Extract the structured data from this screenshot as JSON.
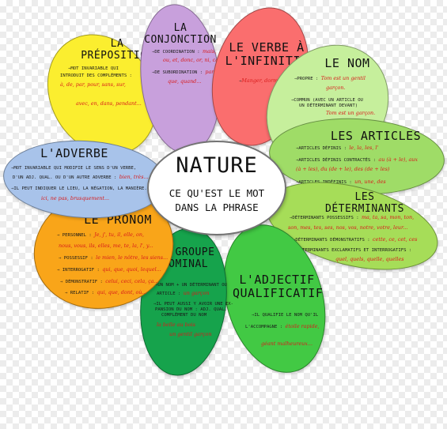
{
  "center": {
    "title": "NATURE",
    "subtitle_line1": "CE QU'EST LE MOT",
    "subtitle_line2": "DANS LA PHRASE"
  },
  "colors": {
    "preposition": "#fbee2f",
    "conjonction": "#c8a0dc",
    "verbe": "#fa6e6e",
    "nom": "#c6ef9c",
    "articles": "#9fdc67",
    "determinants": "#a6dd58",
    "adjectif": "#42c944",
    "groupe_nominal": "#16a34c",
    "pronom": "#f9a519",
    "adverbe": "#a8c3ea",
    "example_text": "#d81b1b"
  },
  "petals": {
    "preposition": {
      "title1": "LA",
      "title2": "PRÉPOSITION",
      "lines": [
        {
          "text": "⇒MOT INVARIABLE QUI",
          "ex": ""
        },
        {
          "text": "INTRODUIT DES COMPLÉMENTS :",
          "ex": ""
        },
        {
          "text": "",
          "ex": "à, de, par, pour, sans, sur,"
        },
        {
          "text": "",
          "ex": "avec, en, dans, pendant..."
        }
      ]
    },
    "conjonction": {
      "title1": "LA",
      "title2": "CONJONCTION",
      "lines": [
        {
          "text": "⇒DE COORDINATION :",
          "ex": "mais,"
        },
        {
          "text": "",
          "ex": "ou, et, donc, or, ni, car"
        },
        {
          "text": "⇒DE SUBORDINATION :",
          "ex": "parce"
        },
        {
          "text": "",
          "ex": "que, quand..."
        }
      ]
    },
    "verbe": {
      "title1": "LE VERBE À",
      "title2": "L'INFINITIF",
      "lines": [
        {
          "text": "⇒",
          "ex": "Manger, dormir..."
        }
      ]
    },
    "nom": {
      "title1": "LE NOM",
      "lines": [
        {
          "text": "⇒PROPRE :",
          "ex": "Tom est un gentil"
        },
        {
          "text": "",
          "ex": "garçon."
        },
        {
          "text": "⇒COMMUN (AVEC UN ARTICLE OU",
          "ex": ""
        },
        {
          "text": "UN DÉTERMINANT DEVANT)",
          "ex": ""
        },
        {
          "text": "",
          "ex": "Tom est un garçon."
        }
      ]
    },
    "articles": {
      "title1": "LES ARTICLES",
      "lines": [
        {
          "text": "⇒ARTICLES DÉFINIS :",
          "ex": "le, la, les, l'"
        },
        {
          "text": "⇒ARTICLES DÉFINIS CONTRACTÉS :",
          "ex": "au (à + le), aux"
        },
        {
          "text": "",
          "ex": "(à + les), du (de + le), des (de + les)"
        },
        {
          "text": "⇒ARTICLES INDÉFINIS :",
          "ex": "un, une, des"
        }
      ]
    },
    "determinants": {
      "title1": "LES",
      "title2": "DÉTERMINANTS",
      "lines": [
        {
          "text": "⇒DÉTERMINANTS POSSESSIFS :",
          "ex": "ma, ta, sa, mon, ton,"
        },
        {
          "text": "",
          "ex": "son, mes, tes, ses, nos, vos, notre, votre, leur..."
        },
        {
          "text": "⇒DÉTERMINANTS DÉMONSTRATIFS :",
          "ex": "cette, ce, cet, ces"
        },
        {
          "text": "⇒DÉTERMINANTS EXCLAMATIFS ET INTERROGATIFS :",
          "ex": ""
        },
        {
          "text": "",
          "ex": "quel, quels, quelle, quelles"
        }
      ]
    },
    "adjectif": {
      "title1": "L'ADJECTIF",
      "title2": "QUALIFICATIF",
      "lines": [
        {
          "text": "⇒IL QUALIFIE LE NOM QU'IL",
          "ex": ""
        },
        {
          "text": "L'ACCOMPAGNE :",
          "ex": "étoile rapide,"
        },
        {
          "text": "",
          "ex": "géant malheureux..."
        }
      ]
    },
    "groupe_nominal": {
      "title1": "LE GROUPE",
      "title2": "NOMINAL",
      "lines": [
        {
          "text": "⇒UN NOM + UN DÉTERMINANT OU",
          "ex": ""
        },
        {
          "text": "ARTICLE :",
          "ex": "un garçon"
        },
        {
          "text": "⇒IL PEUT AUSSI Y AVOIR UNE EX-",
          "ex": ""
        },
        {
          "text": "PANSION DU NOM : ADJ. QUAL.",
          "ex": ""
        },
        {
          "text": "COMPLÉMENT DU NOM",
          "ex": ""
        },
        {
          "text": "",
          "ex": "la belle au bois"
        },
        {
          "text": "",
          "ex": "un gentil garçon"
        }
      ]
    },
    "pronom": {
      "title1": "LE PRONOM",
      "lines": [
        {
          "text": "⇒ PERSONNEL :",
          "ex": "Je, j', tu, il, elle, on,"
        },
        {
          "text": "",
          "ex": "nous, vous, ils, elles, me, te, la, l', y..."
        },
        {
          "text": "⇒ POSSESSIF :",
          "ex": "le mien, le nôtre, les siens..."
        },
        {
          "text": "⇒ INTERROGATIF :",
          "ex": "qui, que, quoi, lequel..."
        },
        {
          "text": "⇒ DÉMONSTRATIF :",
          "ex": "celui, ceci, cela, ça..."
        },
        {
          "text": "⇒ RELATIF :",
          "ex": "qui, que, dont, où..."
        }
      ]
    },
    "adverbe": {
      "title1": "L'ADVERBE",
      "lines": [
        {
          "text": "⇒MOT INVARIABLE QUI MODIFIE LE SENS D'UN VERBE,",
          "ex": ""
        },
        {
          "text": "D'UN ADJ. QUAL. OU D'UN AUTRE ADVERBE :",
          "ex": "bien, très..."
        },
        {
          "text": "⇒IL PEUT INDIQUER LE LIEU, LA NÉGATION, LA MANIÈRE...",
          "ex": ""
        },
        {
          "text": "",
          "ex": "ici, ne pas, brusquement..."
        }
      ]
    }
  }
}
